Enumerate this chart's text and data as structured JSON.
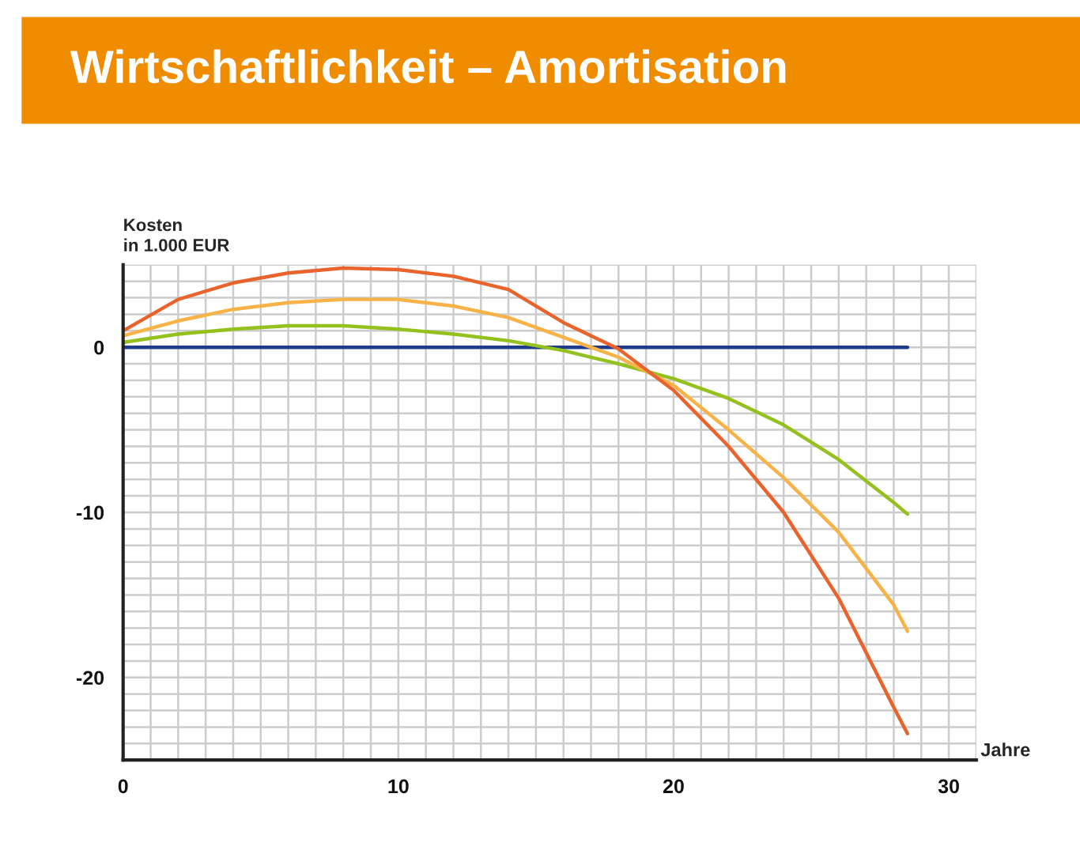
{
  "chart_data": {
    "type": "line",
    "title": "Wirtschaftlichkeit – Amortisation",
    "ylabel": "Kosten\nin 1.000 EUR",
    "xlabel": "Jahre",
    "xlim": [
      0,
      31
    ],
    "xticks": [
      0,
      10,
      20,
      30
    ],
    "ylim": [
      -25,
      5
    ],
    "yticks": [
      -20,
      -10,
      0
    ],
    "grid": true,
    "legend": false,
    "marker": "none",
    "line_style": "solid",
    "series": [
      {
        "color": "#1f3c8c",
        "x": [
          0,
          28.5
        ],
        "values": [
          0,
          0
        ]
      },
      {
        "color": "#95c11f",
        "x": [
          0,
          2,
          4,
          6,
          8,
          10,
          12,
          14,
          16,
          18,
          20,
          22,
          24,
          26,
          28,
          28.5
        ],
        "values": [
          0.3,
          0.8,
          1.1,
          1.3,
          1.3,
          1.1,
          0.8,
          0.4,
          -0.2,
          -1.0,
          -1.9,
          -3.1,
          -4.7,
          -6.8,
          -9.4,
          -10.1
        ]
      },
      {
        "color": "#f7b347",
        "x": [
          0,
          2,
          4,
          6,
          8,
          10,
          12,
          14,
          16,
          18,
          20,
          22,
          24,
          26,
          28,
          28.5
        ],
        "values": [
          0.7,
          1.6,
          2.3,
          2.7,
          2.9,
          2.9,
          2.5,
          1.8,
          0.6,
          -0.6,
          -2.3,
          -5.0,
          -7.9,
          -11.2,
          -15.6,
          -17.2
        ]
      },
      {
        "color": "#e8642c",
        "x": [
          0,
          2,
          4,
          6,
          8,
          10,
          12,
          14,
          16,
          18,
          20,
          22,
          24,
          26,
          28,
          28.5
        ],
        "values": [
          1.0,
          2.9,
          3.9,
          4.5,
          4.8,
          4.7,
          4.3,
          3.5,
          1.5,
          -0.1,
          -2.6,
          -6.0,
          -10.0,
          -15.2,
          -21.8,
          -23.4
        ]
      }
    ]
  }
}
